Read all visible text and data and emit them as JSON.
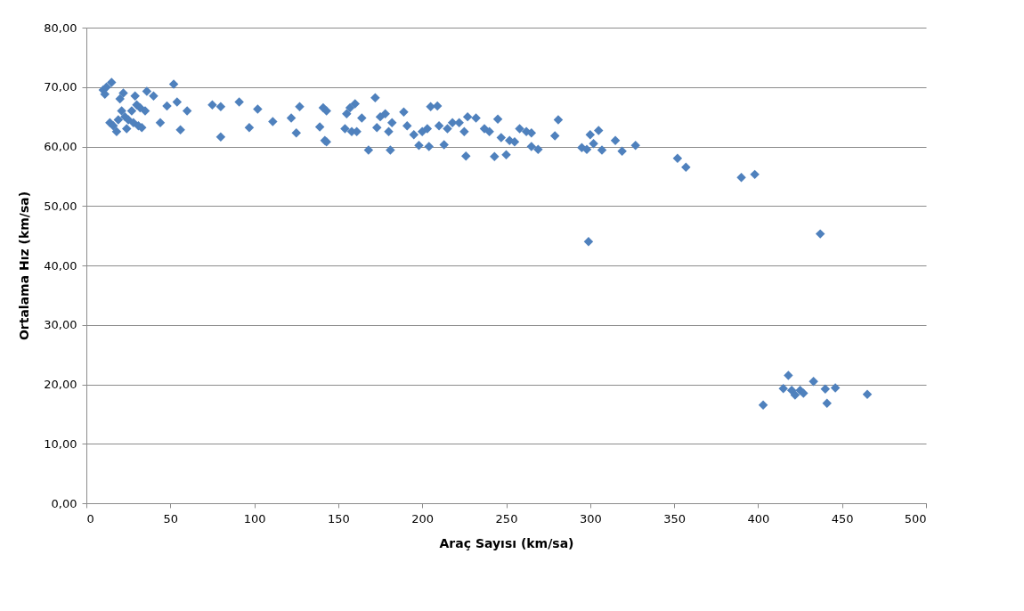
{
  "chart_data": {
    "type": "scatter",
    "xlabel": "Araç Sayısı (km/sa)",
    "ylabel": "Ortalama Hız (km/sa)",
    "xlim": [
      0,
      500
    ],
    "xticks": [
      0,
      50,
      100,
      150,
      200,
      250,
      300,
      350,
      400,
      450,
      500
    ],
    "ylim": [
      0,
      80
    ],
    "yticks": [
      {
        "value": 0,
        "label": "0,00"
      },
      {
        "value": 10,
        "label": "10,00"
      },
      {
        "value": 20,
        "label": "20,00"
      },
      {
        "value": 30,
        "label": "30,00"
      },
      {
        "value": 40,
        "label": "40,00"
      },
      {
        "value": 50,
        "label": "50,00"
      },
      {
        "value": 60,
        "label": "60,00"
      },
      {
        "value": 70,
        "label": "70,00"
      },
      {
        "value": 80,
        "label": "80,00"
      }
    ],
    "grid": "y",
    "marker": "diamond",
    "legend": false,
    "series": [
      {
        "color": "#4f81bd",
        "x": [
          10,
          11,
          12,
          15,
          14,
          16,
          18,
          19,
          20,
          22,
          21,
          23,
          24,
          25,
          27,
          28,
          29,
          30,
          31,
          32,
          33,
          35,
          36,
          40,
          44,
          48,
          52,
          54,
          56,
          60,
          75,
          80,
          80,
          91,
          97,
          102,
          111,
          122,
          125,
          127,
          139,
          141,
          142,
          143,
          143,
          154,
          155,
          157,
          158,
          160,
          161,
          164,
          168,
          172,
          173,
          175,
          178,
          180,
          181,
          182,
          189,
          191,
          195,
          198,
          200,
          203,
          204,
          205,
          209,
          210,
          213,
          215,
          218,
          222,
          225,
          226,
          227,
          232,
          237,
          240,
          243,
          245,
          247,
          250,
          252,
          255,
          258,
          262,
          265,
          265,
          269,
          279,
          281,
          295,
          298,
          299,
          300,
          302,
          305,
          307,
          315,
          319,
          327,
          352,
          357,
          390,
          398,
          403,
          415,
          418,
          420,
          422,
          425,
          427,
          433,
          437,
          440,
          441,
          446,
          465
        ],
        "values": [
          69.5,
          68.8,
          70,
          70.8,
          64,
          63.5,
          62.5,
          64.5,
          68,
          69,
          66,
          65,
          63,
          64.5,
          66,
          64,
          68.5,
          67,
          63.5,
          66.5,
          63.2,
          66,
          69.3,
          68.5,
          64,
          66.8,
          70.5,
          67.5,
          62.8,
          66,
          67,
          66.7,
          61.6,
          67.5,
          63.2,
          66.3,
          64.2,
          64.8,
          62.3,
          66.7,
          63.3,
          66.5,
          61,
          60.8,
          66,
          63,
          65.5,
          66.5,
          62.5,
          67.2,
          62.5,
          64.8,
          59.4,
          68.2,
          63.2,
          65,
          65.5,
          62.5,
          59.4,
          64,
          65.8,
          63.5,
          62,
          60.2,
          62.5,
          63,
          60,
          66.7,
          66.8,
          63.5,
          60.3,
          63,
          64,
          64,
          62.5,
          58.4,
          65,
          64.8,
          63,
          62.5,
          58.3,
          64.6,
          61.5,
          58.6,
          61,
          60.8,
          63,
          62.5,
          60,
          62.3,
          59.5,
          61.8,
          64.5,
          59.8,
          59.5,
          44,
          62,
          60.5,
          62.7,
          59.4,
          61,
          59.2,
          60.2,
          58,
          56.5,
          54.8,
          55.3,
          16.5,
          19.3,
          21.5,
          19,
          18.2,
          19,
          18.5,
          20.5,
          45.3,
          19.2,
          16.8,
          19.4,
          18.3
        ]
      }
    ]
  }
}
